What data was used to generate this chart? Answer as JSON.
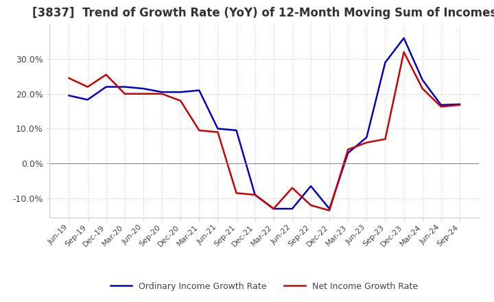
{
  "title": "[3837]  Trend of Growth Rate (YoY) of 12-Month Moving Sum of Incomes",
  "title_fontsize": 12,
  "title_color": "#333333",
  "ylim": [
    -0.155,
    0.4
  ],
  "yticks": [
    -0.1,
    0.0,
    0.1,
    0.2,
    0.3
  ],
  "ytick_labels": [
    "-10.0%",
    "0.0%",
    "10.0%",
    "20.0%",
    "30.0%"
  ],
  "background_color": "#ffffff",
  "plot_bg_color": "#ffffff",
  "grid_color": "#cccccc",
  "legend_labels": [
    "Ordinary Income Growth Rate",
    "Net Income Growth Rate"
  ],
  "legend_colors": [
    "#0000cc",
    "#cc0000"
  ],
  "x_labels": [
    "Jun-19",
    "Sep-19",
    "Dec-19",
    "Mar-20",
    "Jun-20",
    "Sep-20",
    "Dec-20",
    "Mar-21",
    "Jun-21",
    "Sep-21",
    "Dec-21",
    "Mar-22",
    "Jun-22",
    "Sep-22",
    "Dec-22",
    "Mar-23",
    "Jun-23",
    "Sep-23",
    "Dec-23",
    "Mar-24",
    "Jun-24",
    "Sep-24"
  ],
  "ordinary_income_gr": [
    0.195,
    0.183,
    0.22,
    0.22,
    0.215,
    0.205,
    0.205,
    0.21,
    0.1,
    0.095,
    -0.09,
    -0.13,
    -0.13,
    -0.065,
    -0.13,
    0.03,
    0.075,
    0.29,
    0.36,
    0.24,
    0.168,
    0.17
  ],
  "net_income_gr": [
    0.245,
    0.22,
    0.255,
    0.2,
    0.2,
    0.2,
    0.18,
    0.095,
    0.09,
    -0.085,
    -0.09,
    -0.13,
    -0.07,
    -0.12,
    -0.135,
    0.04,
    0.06,
    0.07,
    0.32,
    0.215,
    0.163,
    0.168
  ]
}
